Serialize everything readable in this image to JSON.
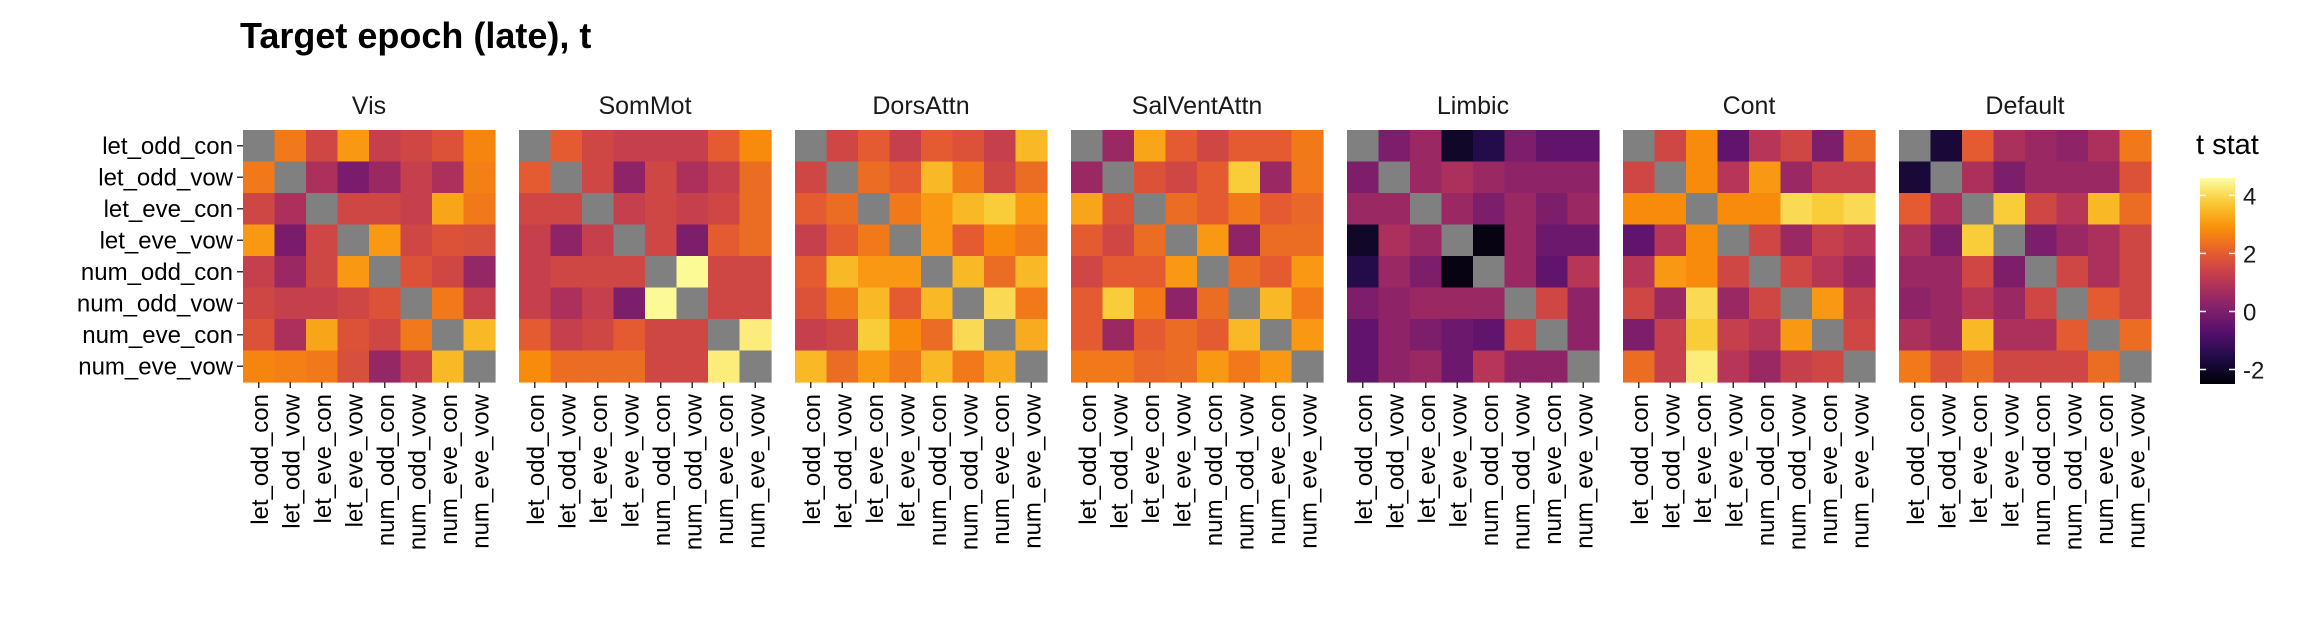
{
  "chart_data": {
    "type": "heatmap",
    "title": "Target epoch (late), t",
    "xlabel": "",
    "ylabel": "",
    "legend": {
      "title": "t stat",
      "ticks": [
        4,
        2,
        0,
        -2
      ],
      "range": [
        -2.5,
        4.6
      ],
      "position": "right",
      "colormap": "inferno"
    },
    "diagonal_color": "#808080",
    "rows": [
      "let_odd_con",
      "let_odd_vow",
      "let_eve_con",
      "let_eve_vow",
      "num_odd_con",
      "num_odd_vow",
      "num_eve_con",
      "num_eve_vow"
    ],
    "cols": [
      "let_odd_con",
      "let_odd_vow",
      "let_eve_con",
      "let_eve_vow",
      "num_odd_con",
      "num_odd_vow",
      "num_eve_con",
      "num_eve_vow"
    ],
    "panels": [
      {
        "name": "Vis",
        "values": [
          [
            null,
            2.5,
            1.5,
            3.0,
            1.3,
            1.5,
            1.8,
            2.7
          ],
          [
            2.5,
            null,
            0.8,
            -0.1,
            0.5,
            1.3,
            0.8,
            2.6
          ],
          [
            1.5,
            0.8,
            null,
            1.5,
            1.5,
            1.3,
            3.2,
            2.5
          ],
          [
            3.0,
            -0.1,
            1.5,
            null,
            3.0,
            1.5,
            1.8,
            1.7
          ],
          [
            1.3,
            0.5,
            1.5,
            3.0,
            null,
            1.8,
            1.5,
            0.4
          ],
          [
            1.5,
            1.3,
            1.3,
            1.5,
            1.8,
            null,
            2.5,
            1.3
          ],
          [
            1.8,
            0.8,
            3.2,
            1.8,
            1.5,
            2.5,
            null,
            3.5
          ],
          [
            2.7,
            2.6,
            2.5,
            1.7,
            0.4,
            1.3,
            3.5,
            null
          ]
        ]
      },
      {
        "name": "SomMot",
        "values": [
          [
            null,
            2.0,
            1.5,
            1.3,
            1.3,
            1.3,
            2.0,
            2.8
          ],
          [
            2.0,
            null,
            1.5,
            0.3,
            1.5,
            0.8,
            1.3,
            2.3
          ],
          [
            1.5,
            1.5,
            null,
            1.3,
            1.5,
            1.3,
            1.5,
            2.3
          ],
          [
            1.3,
            0.3,
            1.3,
            null,
            1.5,
            0.0,
            2.0,
            2.3
          ],
          [
            1.3,
            1.5,
            1.5,
            1.5,
            null,
            4.5,
            1.5,
            1.5
          ],
          [
            1.3,
            0.8,
            1.3,
            0.0,
            4.5,
            null,
            1.5,
            1.5
          ],
          [
            2.0,
            1.3,
            1.5,
            2.0,
            1.5,
            1.5,
            null,
            4.3
          ],
          [
            2.8,
            2.3,
            2.3,
            2.3,
            1.5,
            1.5,
            4.3,
            null
          ]
        ]
      },
      {
        "name": "DorsAttn",
        "values": [
          [
            null,
            1.5,
            2.0,
            1.3,
            2.0,
            1.8,
            1.3,
            3.5
          ],
          [
            1.5,
            null,
            2.3,
            2.0,
            3.5,
            2.5,
            1.5,
            2.3
          ],
          [
            2.0,
            2.3,
            null,
            2.5,
            3.0,
            3.5,
            3.8,
            3.0
          ],
          [
            1.3,
            2.0,
            2.5,
            null,
            3.0,
            2.0,
            2.8,
            2.5
          ],
          [
            2.0,
            3.5,
            3.0,
            3.0,
            null,
            3.5,
            2.3,
            3.5
          ],
          [
            1.8,
            2.5,
            3.5,
            2.0,
            3.5,
            null,
            4.0,
            2.5
          ],
          [
            1.3,
            1.5,
            3.8,
            2.8,
            2.3,
            4.0,
            null,
            3.3
          ],
          [
            3.5,
            2.3,
            3.0,
            2.5,
            3.5,
            2.5,
            3.3,
            null
          ]
        ]
      },
      {
        "name": "SalVentAttn",
        "values": [
          [
            null,
            0.5,
            3.2,
            2.0,
            1.5,
            2.0,
            2.0,
            2.5
          ],
          [
            0.5,
            null,
            1.8,
            1.5,
            2.0,
            3.8,
            0.5,
            2.5
          ],
          [
            3.2,
            1.8,
            null,
            2.3,
            2.0,
            2.5,
            2.0,
            2.2
          ],
          [
            2.0,
            1.5,
            2.3,
            null,
            3.0,
            0.3,
            2.3,
            2.3
          ],
          [
            1.5,
            2.0,
            2.0,
            3.0,
            null,
            2.3,
            2.0,
            3.0
          ],
          [
            2.0,
            3.8,
            2.5,
            0.3,
            2.3,
            null,
            3.5,
            2.5
          ],
          [
            2.0,
            0.5,
            2.0,
            2.3,
            2.0,
            3.5,
            null,
            3.0
          ],
          [
            2.5,
            2.5,
            2.2,
            2.3,
            3.0,
            2.5,
            3.0,
            null
          ]
        ]
      },
      {
        "name": "Limbic",
        "values": [
          [
            null,
            0.0,
            0.5,
            -2.0,
            -1.5,
            0.0,
            -0.5,
            -0.5
          ],
          [
            0.0,
            null,
            0.5,
            0.8,
            0.5,
            0.3,
            0.3,
            0.3
          ],
          [
            0.5,
            0.5,
            null,
            0.5,
            0.0,
            0.5,
            0.0,
            0.5
          ],
          [
            -2.0,
            0.8,
            0.5,
            null,
            -2.3,
            0.5,
            -0.3,
            -0.3
          ],
          [
            -1.5,
            0.5,
            0.0,
            -2.3,
            null,
            0.5,
            -0.5,
            1.0
          ],
          [
            0.0,
            0.3,
            0.5,
            0.5,
            0.5,
            null,
            1.5,
            0.3
          ],
          [
            -0.5,
            0.3,
            0.0,
            -0.3,
            -0.5,
            1.5,
            null,
            0.3
          ],
          [
            -0.5,
            0.3,
            0.5,
            -0.3,
            1.0,
            0.3,
            0.3,
            null
          ]
        ]
      },
      {
        "name": "Cont",
        "values": [
          [
            null,
            1.5,
            2.8,
            -0.5,
            1.0,
            1.5,
            0.0,
            2.3
          ],
          [
            1.5,
            null,
            2.8,
            1.0,
            3.0,
            0.5,
            1.3,
            1.3
          ],
          [
            2.8,
            2.8,
            null,
            2.8,
            2.8,
            4.0,
            3.8,
            4.0
          ],
          [
            -0.5,
            1.0,
            2.8,
            null,
            1.5,
            0.5,
            1.3,
            1.0
          ],
          [
            1.0,
            3.0,
            2.8,
            1.5,
            null,
            1.5,
            1.0,
            0.5
          ],
          [
            1.5,
            0.5,
            4.0,
            0.5,
            1.5,
            null,
            3.0,
            1.3
          ],
          [
            0.0,
            1.3,
            3.8,
            1.3,
            1.0,
            3.0,
            null,
            1.5
          ],
          [
            2.3,
            1.3,
            4.3,
            1.0,
            0.5,
            1.3,
            1.5,
            null
          ]
        ]
      },
      {
        "name": "Default",
        "values": [
          [
            null,
            -1.8,
            2.0,
            0.8,
            0.5,
            0.3,
            0.8,
            2.5
          ],
          [
            -1.8,
            null,
            0.8,
            0.0,
            0.5,
            0.5,
            0.5,
            1.8
          ],
          [
            2.0,
            0.8,
            null,
            3.8,
            1.5,
            1.0,
            3.5,
            2.3
          ],
          [
            0.8,
            0.0,
            3.8,
            null,
            0.0,
            0.5,
            0.8,
            1.5
          ],
          [
            0.5,
            0.5,
            1.5,
            0.0,
            null,
            1.5,
            0.8,
            1.5
          ],
          [
            0.3,
            0.5,
            1.0,
            0.5,
            1.5,
            null,
            2.0,
            1.5
          ],
          [
            0.8,
            0.5,
            3.5,
            0.8,
            0.8,
            2.0,
            null,
            2.3
          ],
          [
            2.5,
            1.8,
            2.3,
            1.5,
            1.5,
            1.5,
            2.3,
            null
          ]
        ]
      }
    ]
  }
}
